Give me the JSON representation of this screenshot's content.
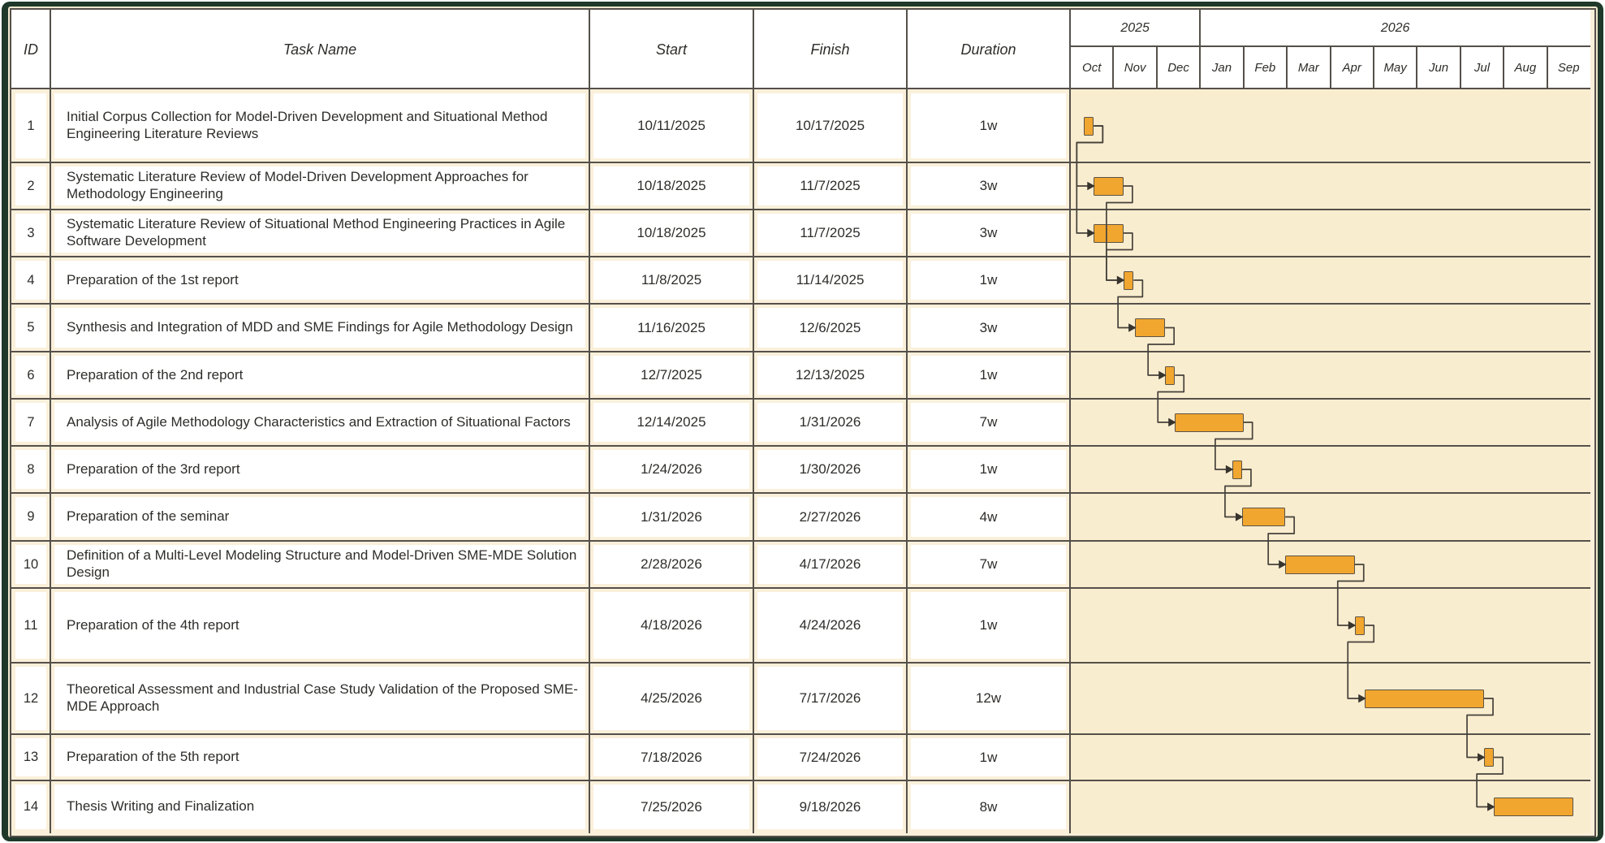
{
  "columns": {
    "id": "ID",
    "task": "Task Name",
    "start": "Start",
    "finish": "Finish",
    "duration": "Duration"
  },
  "timeline": {
    "years": [
      {
        "label": "2025",
        "months": [
          "Oct",
          "Nov",
          "Dec"
        ]
      },
      {
        "label": "2026",
        "months": [
          "Jan",
          "Feb",
          "Mar",
          "Apr",
          "May",
          "Jun",
          "Jul",
          "Aug",
          "Sep"
        ]
      }
    ]
  },
  "chart_data": {
    "type": "bar",
    "subtype": "gantt-timeline",
    "title": "",
    "time_axis": {
      "unit": "month",
      "range": [
        "Oct 2025",
        "Sep 2026"
      ],
      "ticks": [
        "Oct",
        "Nov",
        "Dec",
        "Jan",
        "Feb",
        "Mar",
        "Apr",
        "May",
        "Jun",
        "Jul",
        "Aug",
        "Sep"
      ]
    },
    "tasks": [
      {
        "id": "1",
        "name": "Initial Corpus Collection for Model-Driven Development and Situational Method Engineering Literature Reviews",
        "start": "10/11/2025",
        "finish": "10/17/2025",
        "duration": "1w"
      },
      {
        "id": "2",
        "name": "Systematic Literature Review of Model-Driven Development Approaches for Methodology Engineering",
        "start": "10/18/2025",
        "finish": "11/7/2025",
        "duration": "3w"
      },
      {
        "id": "3",
        "name": "Systematic Literature Review of Situational Method Engineering Practices in Agile Software Development",
        "start": "10/18/2025",
        "finish": "11/7/2025",
        "duration": "3w"
      },
      {
        "id": "4",
        "name": "Preparation of the 1st report",
        "start": "11/8/2025",
        "finish": "11/14/2025",
        "duration": "1w"
      },
      {
        "id": "5",
        "name": "Synthesis and Integration of MDD and SME Findings for Agile Methodology Design",
        "start": "11/16/2025",
        "finish": "12/6/2025",
        "duration": "3w"
      },
      {
        "id": "6",
        "name": "Preparation of the 2nd report",
        "start": "12/7/2025",
        "finish": "12/13/2025",
        "duration": "1w"
      },
      {
        "id": "7",
        "name": "Analysis of Agile Methodology Characteristics and Extraction of Situational Factors",
        "start": "12/14/2025",
        "finish": "1/31/2026",
        "duration": "7w"
      },
      {
        "id": "8",
        "name": "Preparation of the 3rd report",
        "start": "1/24/2026",
        "finish": "1/30/2026",
        "duration": "1w"
      },
      {
        "id": "9",
        "name": "Preparation of the seminar",
        "start": "1/31/2026",
        "finish": "2/27/2026",
        "duration": "4w"
      },
      {
        "id": "10",
        "name": "Definition of a Multi-Level Modeling Structure and Model-Driven SME-MDE Solution Design",
        "start": "2/28/2026",
        "finish": "4/17/2026",
        "duration": "7w"
      },
      {
        "id": "11",
        "name": "Preparation of the 4th report",
        "start": "4/18/2026",
        "finish": "4/24/2026",
        "duration": "1w"
      },
      {
        "id": "12",
        "name": "Theoretical Assessment and Industrial Case Study Validation of the Proposed SME-MDE Approach",
        "start": "4/25/2026",
        "finish": "7/17/2026",
        "duration": "12w"
      },
      {
        "id": "13",
        "name": "Preparation of the 5th report",
        "start": "7/18/2026",
        "finish": "7/24/2026",
        "duration": "1w"
      },
      {
        "id": "14",
        "name": "Thesis Writing and Finalization",
        "start": "7/25/2026",
        "finish": "9/18/2026",
        "duration": "8w"
      }
    ],
    "dependencies": [
      [
        1,
        2
      ],
      [
        1,
        3
      ],
      [
        2,
        4
      ],
      [
        3,
        4
      ],
      [
        4,
        5
      ],
      [
        5,
        6
      ],
      [
        6,
        7
      ],
      [
        7,
        8
      ],
      [
        8,
        9
      ],
      [
        9,
        10
      ],
      [
        10,
        11
      ],
      [
        11,
        12
      ],
      [
        12,
        13
      ],
      [
        13,
        14
      ]
    ]
  },
  "colors": {
    "bar_fill": "#F1A62F",
    "bar_border": "#5C5347",
    "connector": "#45413B",
    "arrowhead": "#37342E",
    "grid_line": "#55504A",
    "frame_green": "#1F3829",
    "mat_cream": "#F2E9D0",
    "row_cream": "#FAF0DA",
    "gantt_cream": "#F9EDCF",
    "header_white": "#FFFFFF",
    "text": "#2E2D2A"
  }
}
